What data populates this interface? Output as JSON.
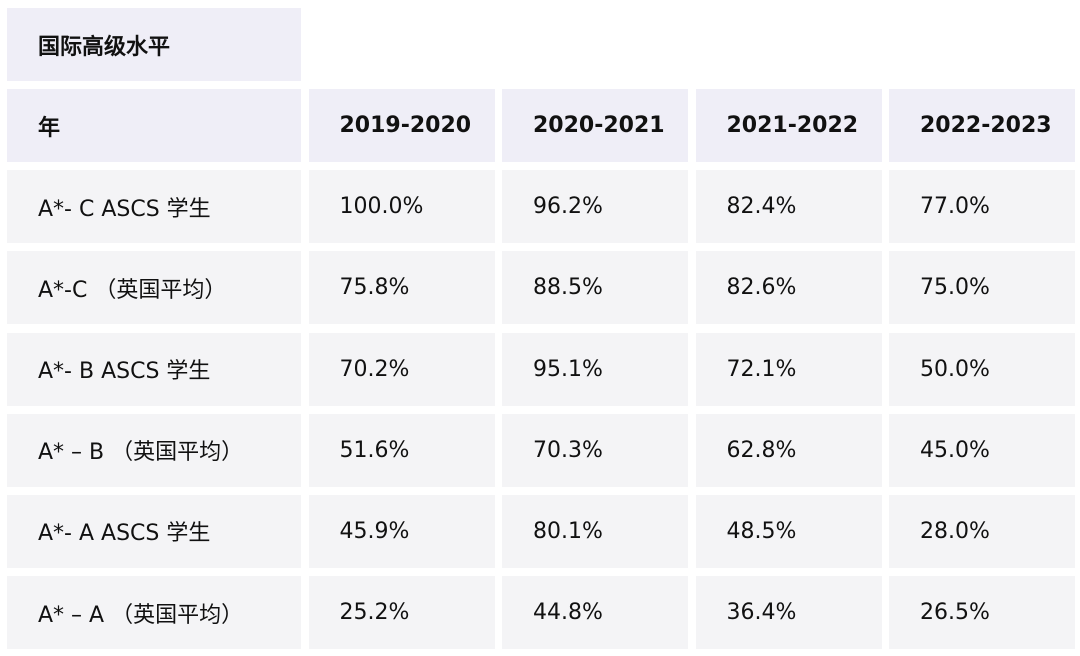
{
  "table": {
    "caption": "国际高级水平",
    "header": [
      "年",
      "2019-2020",
      "2020-2021",
      "2021-2022",
      "2022-2023"
    ],
    "rows": [
      {
        "label": "A*- C ASCS 学生",
        "values": [
          "100.0%",
          "96.2%",
          "82.4%",
          "77.0%"
        ]
      },
      {
        "label": "A*-C （英国平均）",
        "values": [
          "75.8%",
          "88.5%",
          "82.6%",
          "75.0%"
        ]
      },
      {
        "label": "A*- B ASCS 学生",
        "values": [
          "70.2%",
          "95.1%",
          "72.1%",
          "50.0%"
        ]
      },
      {
        "label": "A* – B （英国平均）",
        "values": [
          "51.6%",
          "70.3%",
          "62.8%",
          "45.0%"
        ]
      },
      {
        "label": "A*- A ASCS 学生",
        "values": [
          "45.9%",
          "80.1%",
          "48.5%",
          "28.0%"
        ]
      },
      {
        "label": "A* – A （英国平均）",
        "values": [
          "25.2%",
          "44.8%",
          "36.4%",
          "26.5%"
        ]
      }
    ]
  }
}
